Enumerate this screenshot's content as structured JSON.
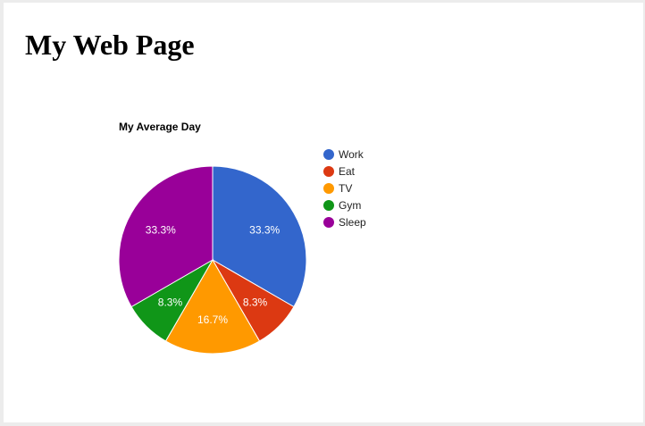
{
  "page": {
    "title": "My Web Page"
  },
  "chart_data": {
    "type": "pie",
    "title": "My Average Day",
    "legend_position": "right",
    "categories": [
      "Work",
      "Eat",
      "TV",
      "Gym",
      "Sleep"
    ],
    "values": [
      4,
      1,
      2,
      1,
      4
    ],
    "percent_labels": [
      "33.3%",
      "8.3%",
      "16.7%",
      "8.3%",
      "33.3%"
    ],
    "colors": [
      "#3366cc",
      "#dc3912",
      "#ff9900",
      "#109618",
      "#990099"
    ]
  }
}
